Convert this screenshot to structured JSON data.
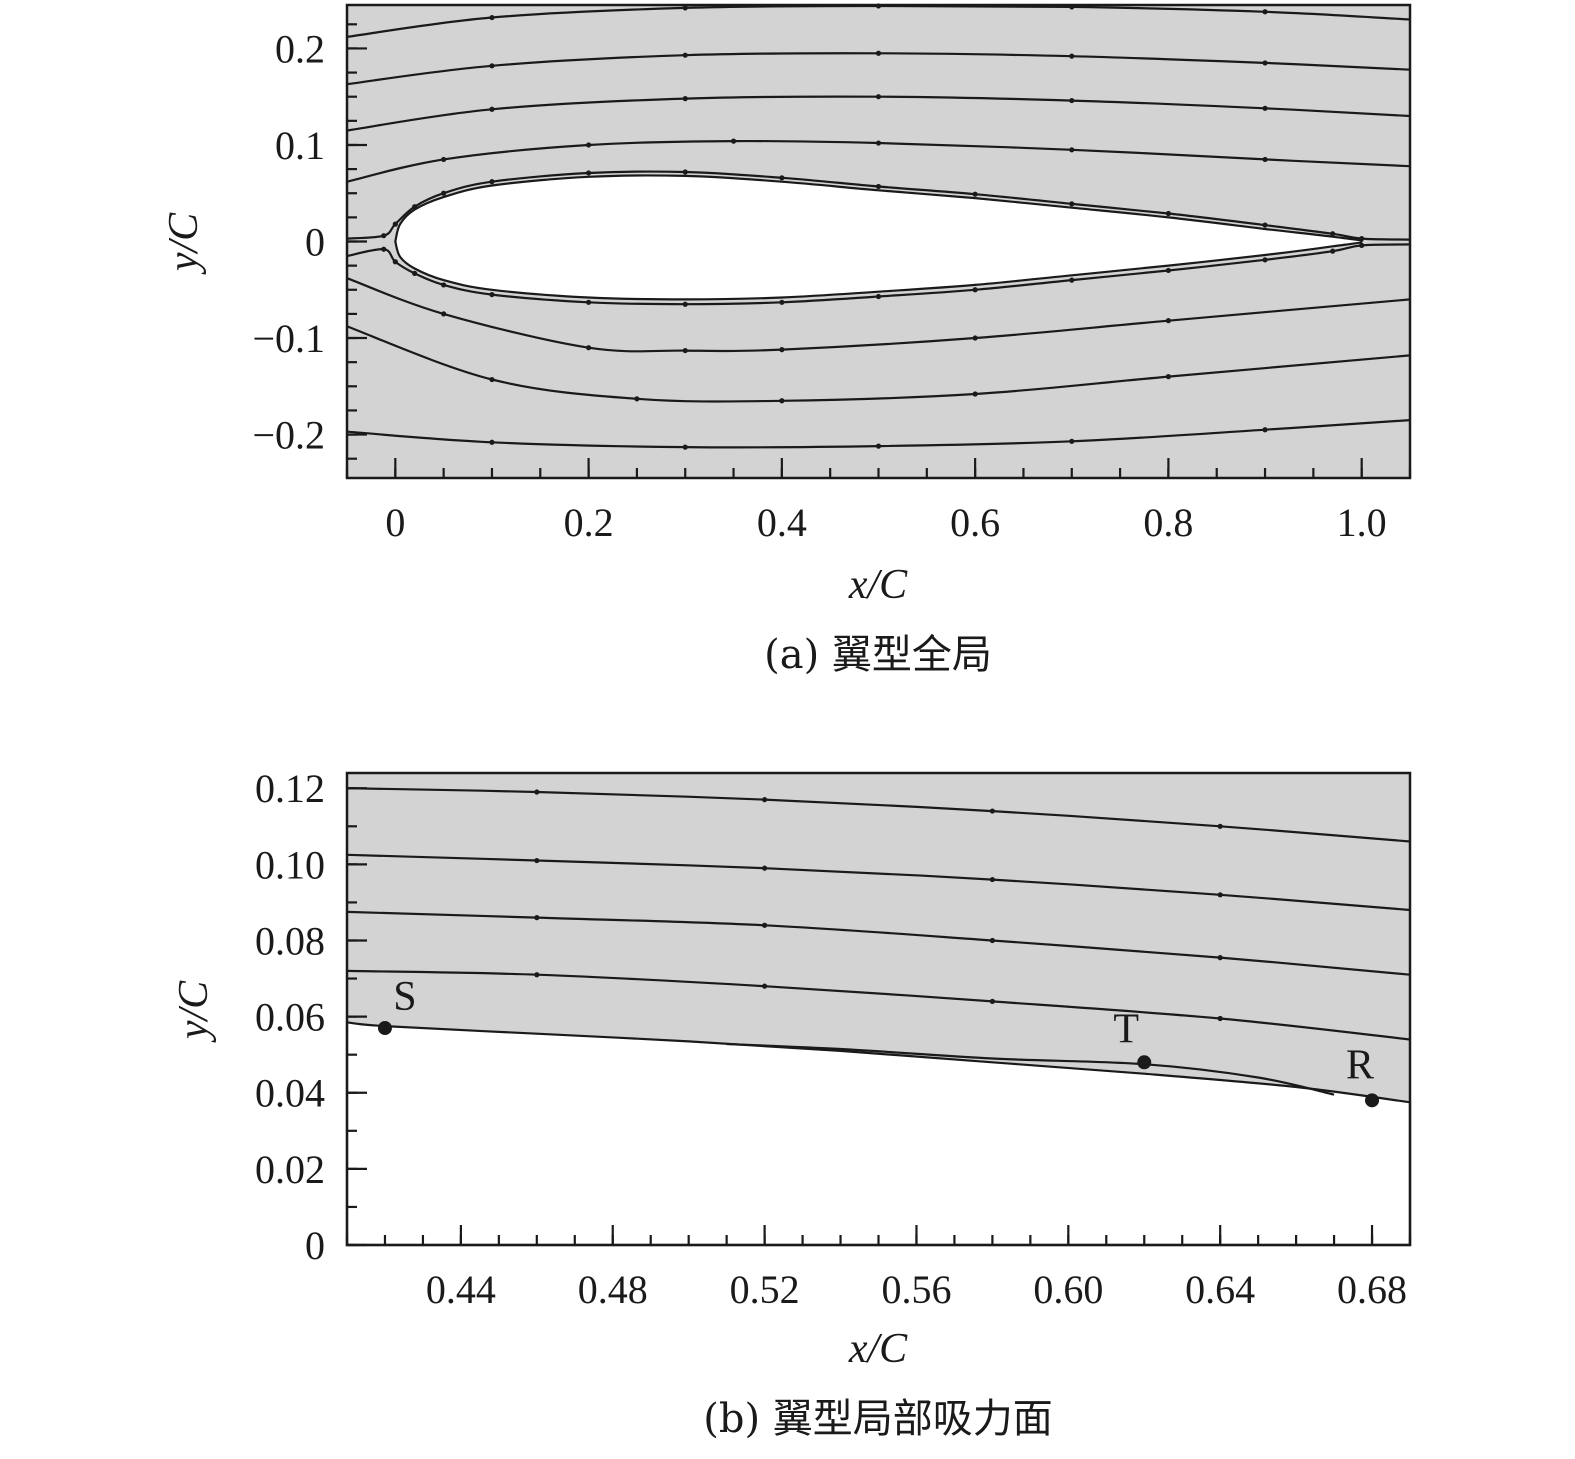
{
  "chart_data": [
    {
      "type": "streamline",
      "caption": "(a) 翼型全局",
      "xlabel": "x/C",
      "ylabel": "y/C",
      "xlim": [
        -0.05,
        1.05
      ],
      "ylim": [
        -0.245,
        0.245
      ],
      "x_ticks": [
        {
          "value": 0,
          "label": "0"
        },
        {
          "value": 0.2,
          "label": "0.2"
        },
        {
          "value": 0.4,
          "label": "0.4"
        },
        {
          "value": 0.6,
          "label": "0.6"
        },
        {
          "value": 0.8,
          "label": "0.8"
        },
        {
          "value": 1.0,
          "label": "1.0"
        }
      ],
      "y_ticks": [
        {
          "value": 0.2,
          "label": "0.2"
        },
        {
          "value": 0.1,
          "label": "0.1"
        },
        {
          "value": 0,
          "label": "0"
        },
        {
          "value": -0.1,
          "label": "−0.1"
        },
        {
          "value": -0.2,
          "label": "−0.2"
        }
      ],
      "airfoil": {
        "upper": [
          [
            0,
            0
          ],
          [
            0.005,
            0.018
          ],
          [
            0.02,
            0.033
          ],
          [
            0.05,
            0.046
          ],
          [
            0.1,
            0.058
          ],
          [
            0.2,
            0.067
          ],
          [
            0.3,
            0.068
          ],
          [
            0.4,
            0.062
          ],
          [
            0.5,
            0.053
          ],
          [
            0.6,
            0.045
          ],
          [
            0.7,
            0.035
          ],
          [
            0.8,
            0.025
          ],
          [
            0.9,
            0.013
          ],
          [
            0.97,
            0.005
          ],
          [
            1.0,
            0
          ]
        ],
        "lower": [
          [
            0,
            0
          ],
          [
            0.005,
            -0.016
          ],
          [
            0.02,
            -0.028
          ],
          [
            0.05,
            -0.04
          ],
          [
            0.1,
            -0.05
          ],
          [
            0.2,
            -0.058
          ],
          [
            0.3,
            -0.06
          ],
          [
            0.4,
            -0.058
          ],
          [
            0.5,
            -0.052
          ],
          [
            0.6,
            -0.045
          ],
          [
            0.7,
            -0.035
          ],
          [
            0.8,
            -0.025
          ],
          [
            0.9,
            -0.014
          ],
          [
            0.97,
            -0.005
          ],
          [
            1.0,
            0
          ]
        ]
      },
      "streamlines": [
        [
          [
            -0.05,
            0.212
          ],
          [
            0.1,
            0.232
          ],
          [
            0.3,
            0.242
          ],
          [
            0.5,
            0.244
          ],
          [
            0.7,
            0.243
          ],
          [
            0.9,
            0.238
          ],
          [
            1.05,
            0.23
          ]
        ],
        [
          [
            -0.05,
            0.163
          ],
          [
            0.1,
            0.182
          ],
          [
            0.3,
            0.193
          ],
          [
            0.5,
            0.195
          ],
          [
            0.7,
            0.192
          ],
          [
            0.9,
            0.185
          ],
          [
            1.05,
            0.178
          ]
        ],
        [
          [
            -0.05,
            0.115
          ],
          [
            0.1,
            0.137
          ],
          [
            0.3,
            0.148
          ],
          [
            0.5,
            0.15
          ],
          [
            0.7,
            0.146
          ],
          [
            0.9,
            0.138
          ],
          [
            1.05,
            0.13
          ]
        ],
        [
          [
            -0.05,
            0.062
          ],
          [
            0.05,
            0.085
          ],
          [
            0.2,
            0.1
          ],
          [
            0.35,
            0.104
          ],
          [
            0.5,
            0.102
          ],
          [
            0.7,
            0.095
          ],
          [
            0.9,
            0.085
          ],
          [
            1.05,
            0.078
          ]
        ],
        [
          [
            -0.05,
            0.003
          ],
          [
            -0.012,
            0.006
          ],
          [
            0.0,
            0.018
          ],
          [
            0.02,
            0.036
          ],
          [
            0.05,
            0.05
          ],
          [
            0.1,
            0.062
          ],
          [
            0.2,
            0.071
          ],
          [
            0.3,
            0.072
          ],
          [
            0.4,
            0.066
          ],
          [
            0.5,
            0.057
          ],
          [
            0.6,
            0.049
          ],
          [
            0.7,
            0.039
          ],
          [
            0.8,
            0.029
          ],
          [
            0.9,
            0.017
          ],
          [
            0.97,
            0.008
          ],
          [
            1.0,
            0.003
          ],
          [
            1.05,
            0.002
          ]
        ],
        [
          [
            -0.05,
            -0.015
          ],
          [
            -0.012,
            -0.008
          ],
          [
            0.0,
            -0.021
          ],
          [
            0.02,
            -0.033
          ],
          [
            0.05,
            -0.045
          ],
          [
            0.1,
            -0.055
          ],
          [
            0.2,
            -0.063
          ],
          [
            0.3,
            -0.065
          ],
          [
            0.4,
            -0.063
          ],
          [
            0.5,
            -0.057
          ],
          [
            0.6,
            -0.05
          ],
          [
            0.7,
            -0.04
          ],
          [
            0.8,
            -0.03
          ],
          [
            0.9,
            -0.019
          ],
          [
            0.97,
            -0.01
          ],
          [
            1.0,
            -0.004
          ],
          [
            1.05,
            -0.003
          ]
        ],
        [
          [
            -0.05,
            -0.038
          ],
          [
            0.05,
            -0.075
          ],
          [
            0.2,
            -0.11
          ],
          [
            0.3,
            -0.113
          ],
          [
            0.4,
            -0.112
          ],
          [
            0.6,
            -0.1
          ],
          [
            0.8,
            -0.082
          ],
          [
            1.05,
            -0.06
          ]
        ],
        [
          [
            -0.05,
            -0.088
          ],
          [
            0.1,
            -0.143
          ],
          [
            0.25,
            -0.163
          ],
          [
            0.4,
            -0.165
          ],
          [
            0.6,
            -0.158
          ],
          [
            0.8,
            -0.14
          ],
          [
            1.05,
            -0.118
          ]
        ],
        [
          [
            -0.05,
            -0.197
          ],
          [
            0.1,
            -0.208
          ],
          [
            0.3,
            -0.213
          ],
          [
            0.5,
            -0.212
          ],
          [
            0.7,
            -0.207
          ],
          [
            0.9,
            -0.195
          ],
          [
            1.05,
            -0.185
          ]
        ]
      ]
    },
    {
      "type": "streamline",
      "caption": "(b) 翼型局部吸力面",
      "xlabel": "x/C",
      "ylabel": "y/C",
      "xlim": [
        0.41,
        0.69
      ],
      "ylim": [
        0,
        0.124
      ],
      "x_ticks": [
        {
          "value": 0.44,
          "label": "0.44"
        },
        {
          "value": 0.48,
          "label": "0.48"
        },
        {
          "value": 0.52,
          "label": "0.52"
        },
        {
          "value": 0.56,
          "label": "0.56"
        },
        {
          "value": 0.6,
          "label": "0.60"
        },
        {
          "value": 0.64,
          "label": "0.64"
        },
        {
          "value": 0.68,
          "label": "0.68"
        }
      ],
      "y_ticks": [
        {
          "value": 0.12,
          "label": "0.12"
        },
        {
          "value": 0.1,
          "label": "0.10"
        },
        {
          "value": 0.08,
          "label": "0.08"
        },
        {
          "value": 0.06,
          "label": "0.06"
        },
        {
          "value": 0.04,
          "label": "0.04"
        },
        {
          "value": 0.02,
          "label": "0.02"
        },
        {
          "value": 0,
          "label": "0"
        }
      ],
      "surface": [
        [
          0.41,
          0.0585
        ],
        [
          0.42,
          0.0575
        ],
        [
          0.46,
          0.0555
        ],
        [
          0.5,
          0.0535
        ],
        [
          0.54,
          0.051
        ],
        [
          0.58,
          0.048
        ],
        [
          0.62,
          0.045
        ],
        [
          0.66,
          0.0415
        ],
        [
          0.69,
          0.0375
        ]
      ],
      "bubble": [
        [
          0.51,
          0.0528
        ],
        [
          0.54,
          0.0515
        ],
        [
          0.58,
          0.049
        ],
        [
          0.62,
          0.0475
        ],
        [
          0.65,
          0.044
        ],
        [
          0.67,
          0.0395
        ]
      ],
      "streamlines": [
        [
          [
            0.41,
            0.12
          ],
          [
            0.46,
            0.119
          ],
          [
            0.52,
            0.117
          ],
          [
            0.58,
            0.114
          ],
          [
            0.64,
            0.11
          ],
          [
            0.69,
            0.106
          ]
        ],
        [
          [
            0.41,
            0.1025
          ],
          [
            0.46,
            0.101
          ],
          [
            0.52,
            0.099
          ],
          [
            0.58,
            0.096
          ],
          [
            0.64,
            0.092
          ],
          [
            0.69,
            0.088
          ]
        ],
        [
          [
            0.41,
            0.0875
          ],
          [
            0.46,
            0.086
          ],
          [
            0.52,
            0.084
          ],
          [
            0.58,
            0.08
          ],
          [
            0.64,
            0.0755
          ],
          [
            0.69,
            0.071
          ]
        ],
        [
          [
            0.41,
            0.072
          ],
          [
            0.46,
            0.071
          ],
          [
            0.52,
            0.068
          ],
          [
            0.58,
            0.064
          ],
          [
            0.64,
            0.0595
          ],
          [
            0.69,
            0.054
          ]
        ]
      ],
      "markers": [
        {
          "label": "S",
          "x": 0.42,
          "y": 0.057
        },
        {
          "label": "T",
          "x": 0.62,
          "y": 0.048
        },
        {
          "label": "R",
          "x": 0.68,
          "y": 0.038
        }
      ]
    }
  ]
}
